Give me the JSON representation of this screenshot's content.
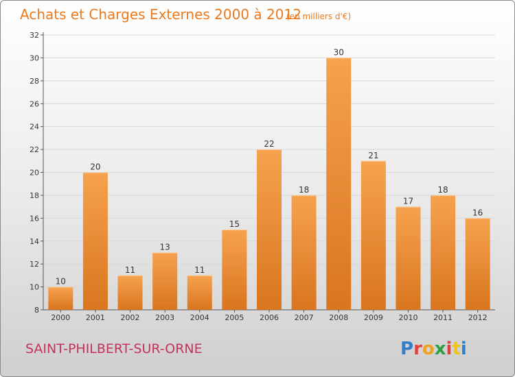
{
  "header": {
    "title": "Achats et Charges Externes 2000 à 2012",
    "unit": "(en milliers d'€)"
  },
  "footer": {
    "place": "SAINT-PHILBERT-SUR-ORNE",
    "logo": "Proxiti"
  },
  "colors": {
    "bar_light": "#f6a24e",
    "bar_dark": "#d9751f",
    "title": "#ea7a1d",
    "place": "#c4325a",
    "grid": "#d8d8d8",
    "logo_letters": [
      "#2f7fc9",
      "#e0433f",
      "#f0a01f",
      "#2f9e44",
      "#e0433f",
      "#f0c419",
      "#2f7fc9"
    ]
  },
  "chart_data": {
    "type": "bar",
    "categories": [
      "2000",
      "2001",
      "2002",
      "2003",
      "2004",
      "2005",
      "2006",
      "2007",
      "2008",
      "2009",
      "2010",
      "2011",
      "2012"
    ],
    "values": [
      10,
      20,
      11,
      13,
      11,
      15,
      22,
      18,
      30,
      21,
      17,
      18,
      16
    ],
    "ylim": [
      8,
      32
    ],
    "yticks": [
      8,
      10,
      12,
      14,
      16,
      18,
      20,
      22,
      24,
      26,
      28,
      30,
      32
    ],
    "grid": "horizontal",
    "data_labels": true,
    "xlabel": "",
    "ylabel": ""
  }
}
